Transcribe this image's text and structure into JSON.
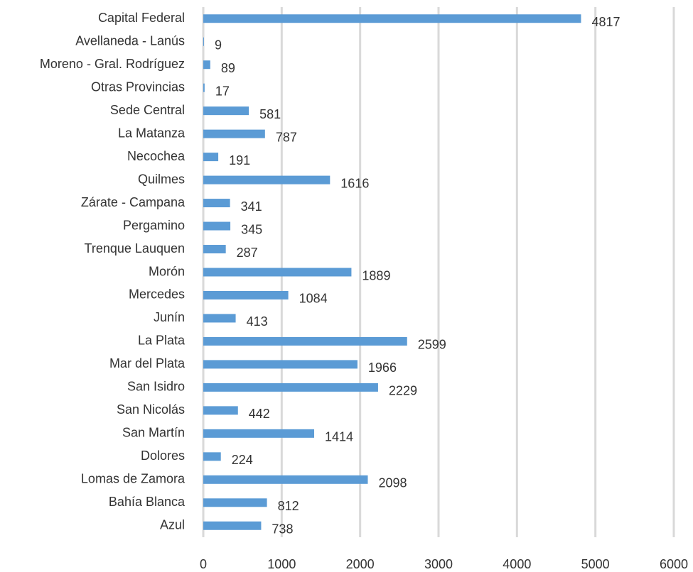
{
  "chart_data": {
    "type": "bar",
    "orientation": "horizontal",
    "categories": [
      "Capital Federal",
      "Avellaneda - Lanús",
      "Moreno - Gral. Rodríguez",
      "Otras Provincias",
      "Sede Central",
      "La Matanza",
      "Necochea",
      "Quilmes",
      "Zárate - Campana",
      "Pergamino",
      "Trenque Lauquen",
      "Morón",
      "Mercedes",
      "Junín",
      "La Plata",
      "Mar del Plata",
      "San Isidro",
      "San Nicolás",
      "San Martín",
      "Dolores",
      "Lomas de Zamora",
      "Bahía Blanca",
      "Azul"
    ],
    "values": [
      4817,
      9,
      89,
      17,
      581,
      787,
      191,
      1616,
      341,
      345,
      287,
      1889,
      1084,
      413,
      2599,
      1966,
      2229,
      442,
      1414,
      224,
      2098,
      812,
      738
    ],
    "color": "#5b9bd5",
    "xlim": [
      0,
      6000
    ],
    "xticks": [
      0,
      1000,
      2000,
      3000,
      4000,
      5000,
      6000
    ],
    "grid": true
  }
}
